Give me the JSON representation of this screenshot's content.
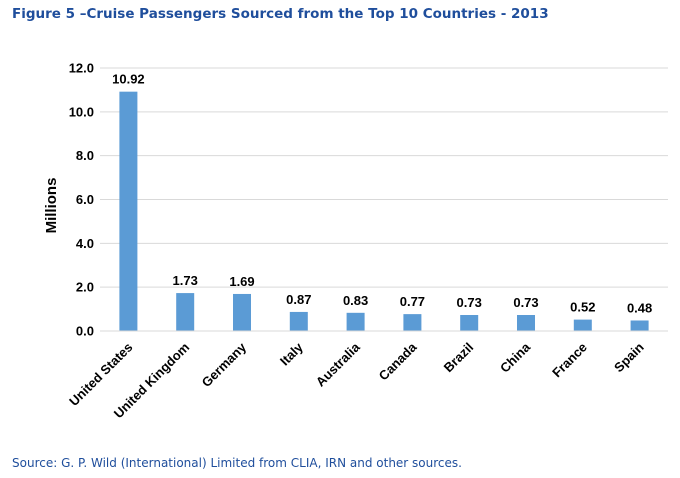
{
  "title": "Figure 5 –Cruise Passengers Sourced from the Top 10 Countries - 2013",
  "source": "Source: G. P. Wild (International) Limited from CLIA, IRN and other sources.",
  "chart_data": {
    "type": "bar",
    "categories": [
      "United States",
      "United Kingdom",
      "Germany",
      "Italy",
      "Australia",
      "Canada",
      "Brazil",
      "China",
      "France",
      "Spain"
    ],
    "values": [
      10.92,
      1.73,
      1.69,
      0.87,
      0.83,
      0.77,
      0.73,
      0.73,
      0.52,
      0.48
    ],
    "value_labels": [
      "10.92",
      "1.73",
      "1.69",
      "0.87",
      "0.83",
      "0.77",
      "0.73",
      "0.73",
      "0.52",
      "0.48"
    ],
    "ylabel": "Millions",
    "ylim": [
      0,
      12
    ],
    "yticks": [
      0,
      2,
      4,
      6,
      8,
      10,
      12
    ],
    "ytick_labels": [
      "0.0",
      "2.0",
      "4.0",
      "6.0",
      "8.0",
      "10.0",
      "12.0"
    ],
    "grid": true,
    "bar_color": "#5B9BD5",
    "grid_color": "#D9D9D9"
  }
}
